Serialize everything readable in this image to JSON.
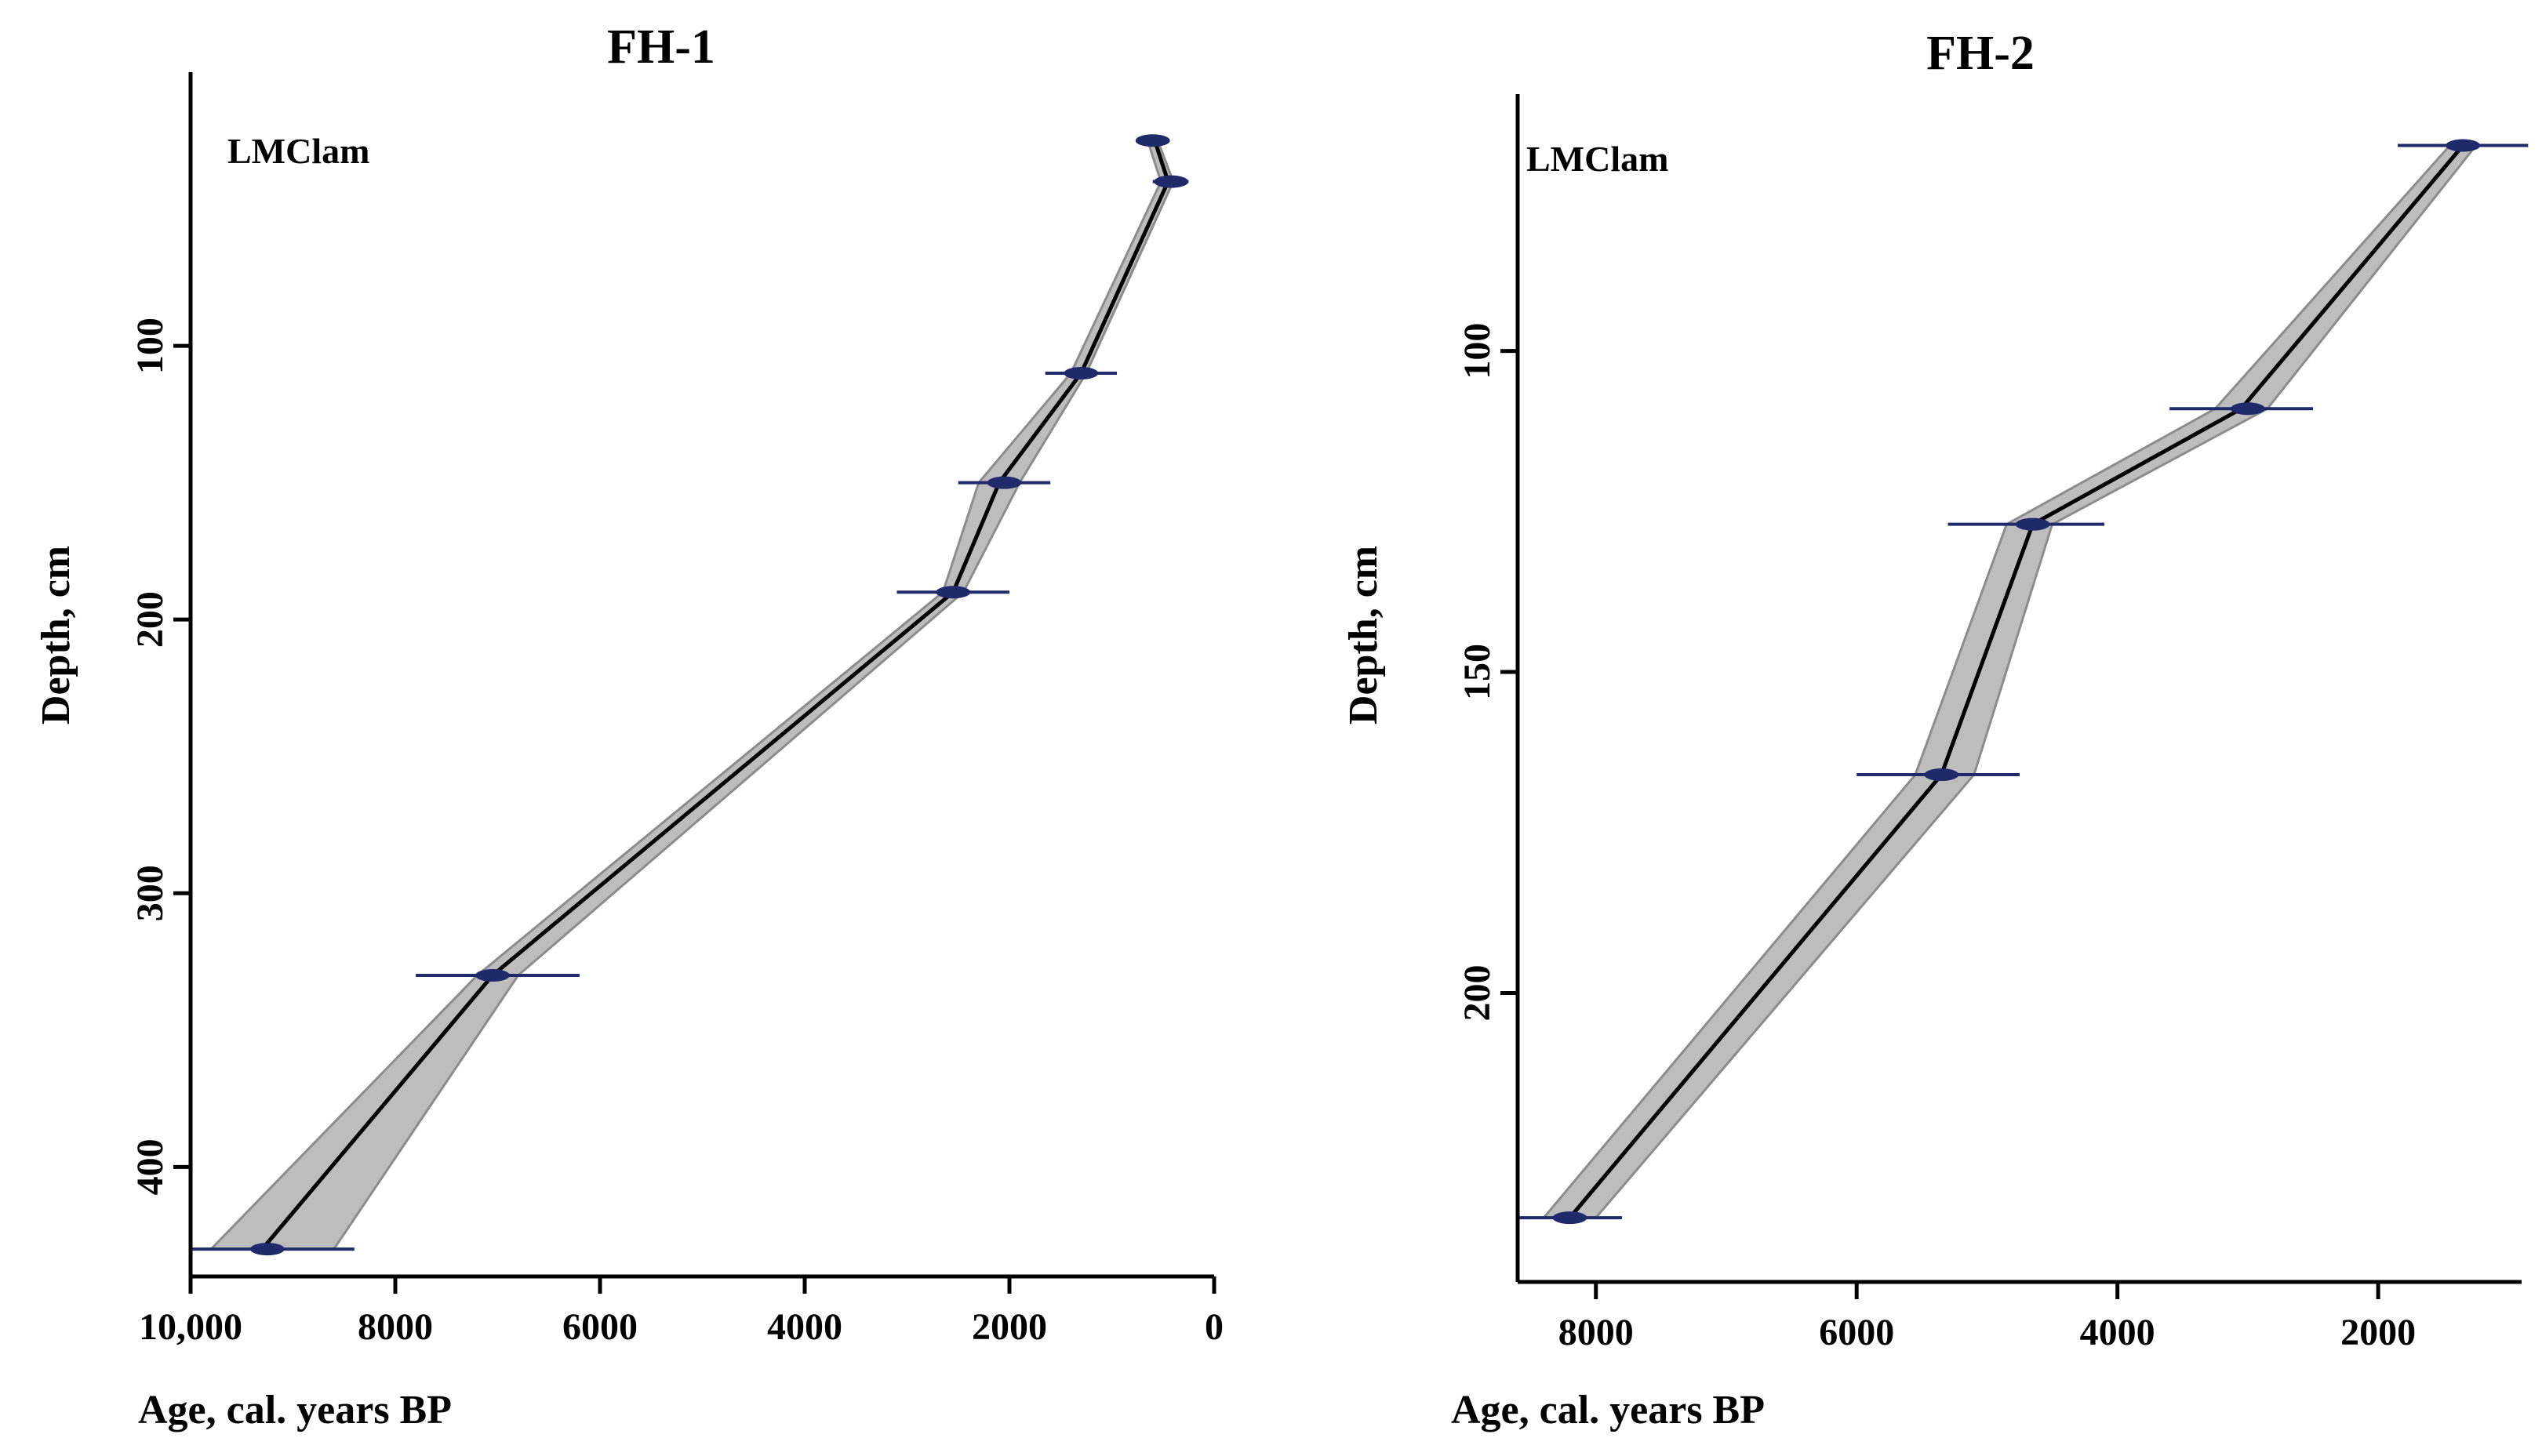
{
  "colors": {
    "band": "#bdbdbd",
    "band_edge": "#8c8c8c",
    "line": "#000000",
    "error_bar": "#1f2a6b"
  },
  "chart_data": [
    {
      "type": "line",
      "title": "FH-1",
      "model_label": "LMClam",
      "xlabel": "Age, cal. years BP",
      "ylabel": "Depth, cm",
      "xlim": [
        10000,
        0
      ],
      "ylim": [
        440,
        0
      ],
      "xticks": [
        10000,
        8000,
        6000,
        4000,
        2000,
        0
      ],
      "xtick_labels": [
        "10,000",
        "8000",
        "6000",
        "4000",
        "2000",
        "0"
      ],
      "yticks": [
        100,
        200,
        300,
        400
      ],
      "ytick_labels": [
        "100",
        "200",
        "300",
        "400"
      ],
      "series": [
        {
          "name": "age-depth model",
          "depth": [
            25,
            40,
            110,
            150,
            190,
            330,
            430
          ],
          "age": [
            580,
            450,
            1300,
            2100,
            2550,
            7050,
            9300
          ],
          "age_min": [
            550,
            400,
            1250,
            1900,
            2450,
            6800,
            8600
          ],
          "age_max": [
            650,
            520,
            1400,
            2300,
            2650,
            7200,
            9800
          ]
        },
        {
          "name": "dated samples",
          "depth": [
            25,
            40,
            110,
            150,
            190,
            330,
            430
          ],
          "age": [
            600,
            420,
            1300,
            2050,
            2550,
            7050,
            9250
          ],
          "err_min": [
            450,
            250,
            950,
            1600,
            2000,
            6200,
            8400
          ],
          "err_max": [
            750,
            600,
            1650,
            2500,
            3100,
            7800,
            10000
          ]
        }
      ]
    },
    {
      "type": "line",
      "title": "FH-2",
      "model_label": "LMClam",
      "xlabel": "Age, cal. years BP",
      "ylabel": "Depth, cm",
      "xlim": [
        8600,
        900
      ],
      "ylim": [
        245,
        60
      ],
      "xticks": [
        8000,
        6000,
        4000,
        2000
      ],
      "xtick_labels": [
        "8000",
        "6000",
        "4000",
        "2000"
      ],
      "yticks": [
        100,
        150,
        200
      ],
      "ytick_labels": [
        "100",
        "150",
        "200"
      ],
      "series": [
        {
          "name": "age-depth model",
          "depth": [
            68,
            109,
            127,
            166,
            235
          ],
          "age": [
            1350,
            3050,
            4650,
            5350,
            8200
          ],
          "age_min": [
            1250,
            2850,
            4500,
            5100,
            8000
          ],
          "age_max": [
            1450,
            3250,
            4850,
            5550,
            8400
          ]
        },
        {
          "name": "dated samples",
          "depth": [
            68,
            109,
            127,
            166,
            235
          ],
          "age": [
            1350,
            3000,
            4650,
            5350,
            8200
          ],
          "err_min": [
            850,
            2500,
            4100,
            4750,
            7800
          ],
          "err_max": [
            1850,
            3600,
            5300,
            6000,
            8600
          ]
        }
      ]
    }
  ]
}
